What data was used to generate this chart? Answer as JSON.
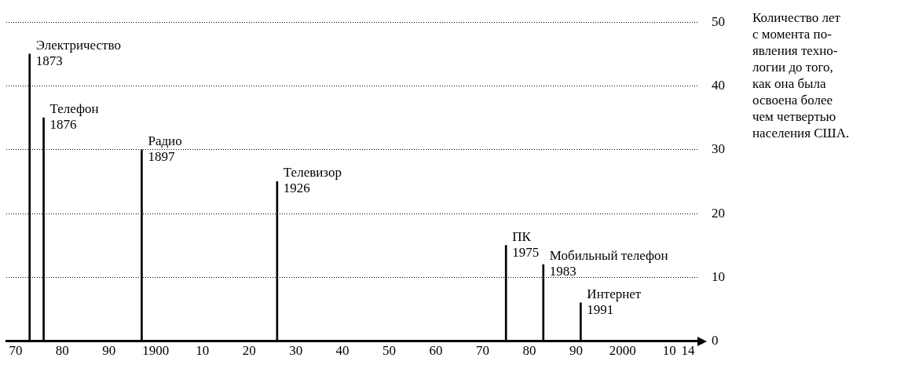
{
  "chart_data": {
    "type": "bar",
    "ylabel": "Количество лет\nс момента по-\nявления техно-\nлогии до того,\nкак она была\nосвоена более\nчем четвертью\nнаселения США.",
    "x": [
      1873,
      1876,
      1897,
      1926,
      1975,
      1983,
      1991
    ],
    "values": [
      45,
      35,
      30,
      25,
      15,
      12,
      6
    ],
    "color": "#000000",
    "xlim": [
      1868,
      2016
    ],
    "xticks": [
      {
        "value": 1870,
        "label": "70"
      },
      {
        "value": 1880,
        "label": "80"
      },
      {
        "value": 1890,
        "label": "90"
      },
      1900,
      {
        "value": 1910,
        "label": "10"
      },
      {
        "value": 1920,
        "label": "20"
      },
      {
        "value": 1930,
        "label": "30"
      },
      {
        "value": 1940,
        "label": "40"
      },
      {
        "value": 1950,
        "label": "50"
      },
      {
        "value": 1960,
        "label": "60"
      },
      {
        "value": 1970,
        "label": "70"
      },
      {
        "value": 1980,
        "label": "80"
      },
      {
        "value": 1990,
        "label": "90"
      },
      2000,
      {
        "value": 2010,
        "label": "10"
      },
      {
        "value": 2014,
        "label": "14"
      }
    ],
    "ylim": [
      0,
      50
    ],
    "yticks": [
      0,
      10,
      20,
      30,
      40,
      50
    ],
    "grid": "y",
    "legend": false,
    "annotations": [
      {
        "text": "Электричество\n1873",
        "x": 1873,
        "y": 45
      },
      {
        "text": "Телефон\n1876",
        "x": 1876,
        "y": 35
      },
      {
        "text": "Радио\n1897",
        "x": 1897,
        "y": 30
      },
      {
        "text": "Телевизор\n1926",
        "x": 1926,
        "y": 25
      },
      {
        "text": "ПК\n1975",
        "x": 1975,
        "y": 15
      },
      {
        "text": "Мобильный телефон\n1983",
        "x": 1983,
        "y": 12
      },
      {
        "text": "Интернет\n1991",
        "x": 1991,
        "y": 6
      }
    ]
  }
}
